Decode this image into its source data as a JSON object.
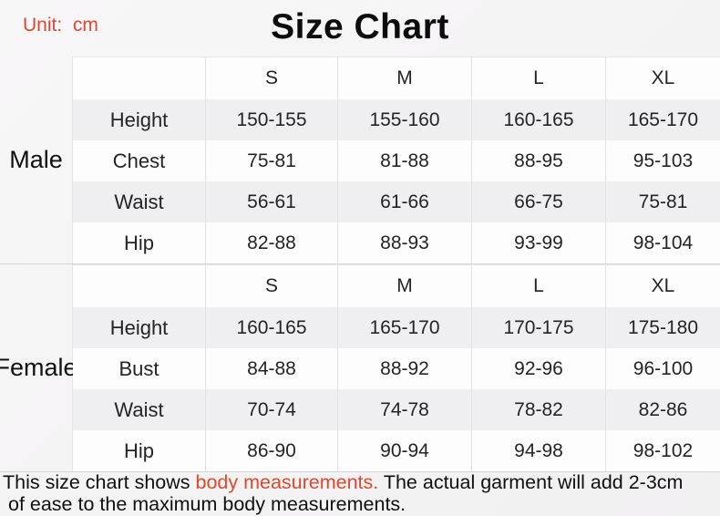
{
  "unit_label": "Unit:  cm",
  "title": "Size Chart",
  "colors": {
    "accent_red": "#e2472e",
    "shaded_row": "#efeef0",
    "white_row": "#fdfdfd"
  },
  "table": {
    "size_headers": [
      "S",
      "M",
      "L",
      "XL"
    ],
    "sections": [
      {
        "group": "Male",
        "rows": [
          {
            "label": "Height",
            "values": [
              "150-155",
              "155-160",
              "160-165",
              "165-170"
            ]
          },
          {
            "label": "Chest",
            "values": [
              "75-81",
              "81-88",
              "88-95",
              "95-103"
            ]
          },
          {
            "label": "Waist",
            "values": [
              "56-61",
              "61-66",
              "66-75",
              "75-81"
            ]
          },
          {
            "label": "Hip",
            "values": [
              "82-88",
              "88-93",
              "93-99",
              "98-104"
            ]
          }
        ]
      },
      {
        "group": "Female",
        "rows": [
          {
            "label": "Height",
            "values": [
              "160-165",
              "165-170",
              "170-175",
              "175-180"
            ]
          },
          {
            "label": "Bust",
            "values": [
              "84-88",
              "88-92",
              "92-96",
              "96-100"
            ]
          },
          {
            "label": "Waist",
            "values": [
              "70-74",
              "74-78",
              "78-82",
              "82-86"
            ]
          },
          {
            "label": "Hip",
            "values": [
              "86-90",
              "90-94",
              "94-98",
              "98-102"
            ]
          }
        ]
      }
    ]
  },
  "footnote": {
    "prefix": "This size chart shows ",
    "highlight": "body measurements.",
    "suffix": " The actual garment will add 2-3cm\n of ease to the maximum body measurements."
  }
}
